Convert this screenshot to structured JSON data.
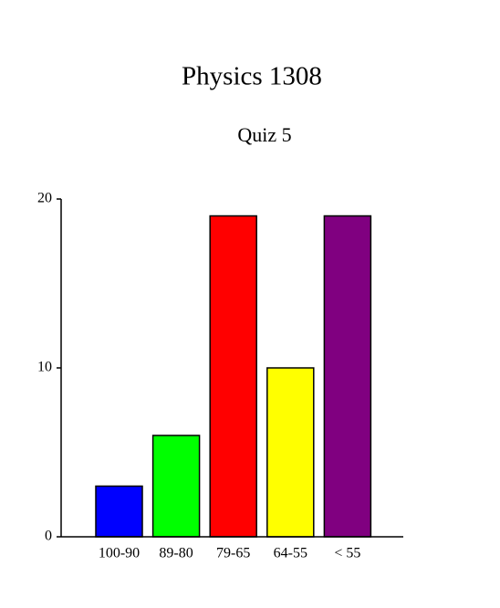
{
  "chart_data": {
    "type": "bar",
    "title": "Physics 1308",
    "subtitle": "Quiz 5",
    "categories": [
      "100-90",
      "89-80",
      "79-65",
      "64-55",
      "< 55"
    ],
    "values": [
      3,
      6,
      19,
      10,
      19
    ],
    "colors": [
      "#0000ff",
      "#00ff00",
      "#ff0000",
      "#ffff00",
      "#800080"
    ],
    "ylim": [
      0,
      20
    ],
    "yticks": [
      0,
      10,
      20
    ]
  }
}
